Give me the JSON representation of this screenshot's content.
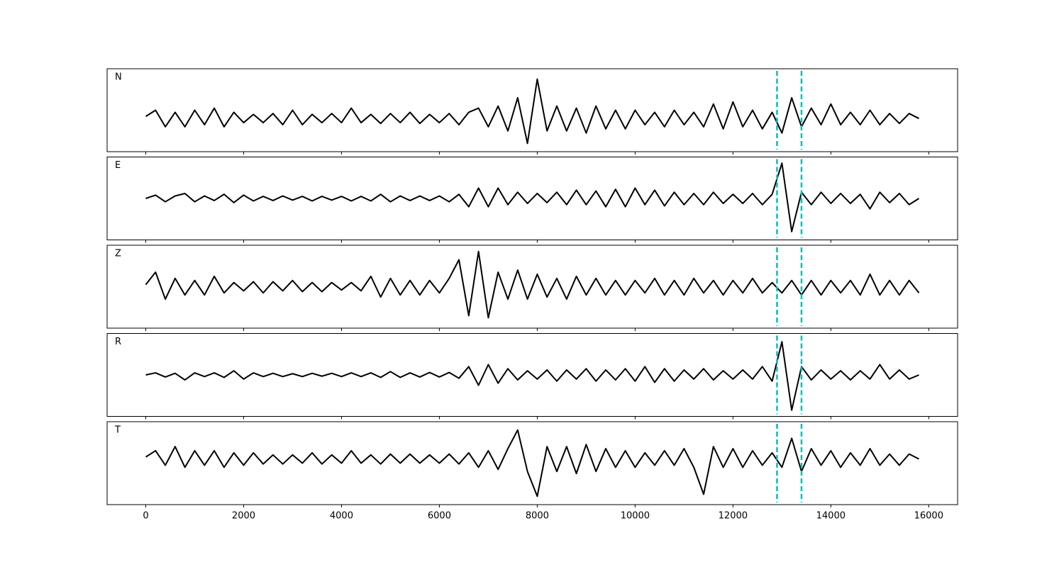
{
  "chart_data": {
    "type": "line",
    "x": [
      0,
      200,
      400,
      600,
      800,
      1000,
      1200,
      1400,
      1600,
      1800,
      2000,
      2200,
      2400,
      2600,
      2800,
      3000,
      3200,
      3400,
      3600,
      3800,
      4000,
      4200,
      4400,
      4600,
      4800,
      5000,
      5200,
      5400,
      5600,
      5800,
      6000,
      6200,
      6400,
      6600,
      6800,
      7000,
      7200,
      7400,
      7600,
      7800,
      8000,
      8200,
      8400,
      8600,
      8800,
      9000,
      9200,
      9400,
      9600,
      9800,
      10000,
      10200,
      10400,
      10600,
      10800,
      11000,
      11200,
      11400,
      11600,
      11800,
      12000,
      12200,
      12400,
      12600,
      12800,
      13000,
      13200,
      13400,
      13600,
      13800,
      14000,
      14200,
      14400,
      14600,
      14800,
      15000,
      15200,
      15400,
      15600,
      15800
    ],
    "xlim": [
      -790,
      16590
    ],
    "xticks": [
      0,
      2000,
      4000,
      6000,
      8000,
      10000,
      12000,
      14000,
      16000
    ],
    "markers": {
      "values": [
        12900,
        13400
      ],
      "color": "#00bfbf"
    },
    "panels": [
      {
        "label": "N",
        "color": "#000000",
        "ylim": [
          -0.8,
          1.2
        ],
        "values": [
          0.05,
          0.2,
          -0.2,
          0.15,
          -0.2,
          0.2,
          -0.15,
          0.25,
          -0.2,
          0.15,
          -0.1,
          0.1,
          -0.1,
          0.12,
          -0.15,
          0.2,
          -0.15,
          0.1,
          -0.1,
          0.12,
          -0.1,
          0.25,
          -0.1,
          0.1,
          -0.12,
          0.12,
          -0.1,
          0.15,
          -0.12,
          0.1,
          -0.1,
          0.12,
          -0.15,
          0.15,
          0.25,
          -0.2,
          0.3,
          -0.3,
          0.5,
          -0.6,
          0.95,
          -0.3,
          0.3,
          -0.3,
          0.25,
          -0.35,
          0.3,
          -0.25,
          0.2,
          -0.25,
          0.2,
          -0.15,
          0.15,
          -0.2,
          0.2,
          -0.15,
          0.15,
          -0.2,
          0.35,
          -0.25,
          0.4,
          -0.2,
          0.2,
          -0.25,
          0.15,
          -0.35,
          0.5,
          -0.2,
          0.25,
          -0.15,
          0.35,
          -0.15,
          0.15,
          -0.15,
          0.2,
          -0.15,
          0.12,
          -0.12,
          0.12,
          0.0
        ]
      },
      {
        "label": "E",
        "color": "#000000",
        "ylim": [
          -1,
          1
        ],
        "values": [
          0.0,
          0.08,
          -0.08,
          0.06,
          0.12,
          -0.08,
          0.06,
          -0.05,
          0.1,
          -0.1,
          0.08,
          -0.06,
          0.05,
          -0.05,
          0.06,
          -0.04,
          0.05,
          -0.06,
          0.05,
          -0.04,
          0.05,
          -0.06,
          0.05,
          -0.06,
          0.1,
          -0.08,
          0.06,
          -0.05,
          0.06,
          -0.05,
          0.06,
          -0.08,
          0.1,
          -0.2,
          0.25,
          -0.2,
          0.25,
          -0.15,
          0.15,
          -0.12,
          0.12,
          -0.1,
          0.15,
          -0.15,
          0.2,
          -0.15,
          0.18,
          -0.2,
          0.22,
          -0.2,
          0.25,
          -0.15,
          0.2,
          -0.18,
          0.15,
          -0.15,
          0.12,
          -0.15,
          0.15,
          -0.12,
          0.1,
          -0.12,
          0.12,
          -0.15,
          0.1,
          0.85,
          -0.8,
          0.15,
          -0.15,
          0.15,
          -0.12,
          0.12,
          -0.12,
          0.1,
          -0.25,
          0.15,
          -0.1,
          0.12,
          -0.15,
          0.0
        ]
      },
      {
        "label": "Z",
        "color": "#000000",
        "ylim": [
          -1,
          1
        ],
        "values": [
          0.05,
          0.35,
          -0.3,
          0.2,
          -0.2,
          0.15,
          -0.2,
          0.25,
          -0.15,
          0.1,
          -0.1,
          0.12,
          -0.15,
          0.12,
          -0.1,
          0.15,
          -0.12,
          0.1,
          -0.12,
          0.1,
          -0.08,
          0.1,
          -0.1,
          0.25,
          -0.25,
          0.2,
          -0.2,
          0.15,
          -0.2,
          0.15,
          -0.15,
          0.2,
          0.65,
          -0.7,
          0.85,
          -0.75,
          0.35,
          -0.3,
          0.4,
          -0.3,
          0.3,
          -0.25,
          0.2,
          -0.3,
          0.25,
          -0.2,
          0.2,
          -0.2,
          0.15,
          -0.2,
          0.15,
          -0.15,
          0.2,
          -0.2,
          0.15,
          -0.2,
          0.2,
          -0.15,
          0.15,
          -0.2,
          0.15,
          -0.15,
          0.2,
          -0.15,
          0.1,
          -0.15,
          0.15,
          -0.2,
          0.15,
          -0.2,
          0.15,
          -0.15,
          0.15,
          -0.2,
          0.3,
          -0.2,
          0.15,
          -0.2,
          0.15,
          -0.15
        ]
      },
      {
        "label": "R",
        "color": "#000000",
        "ylim": [
          -1,
          1
        ],
        "values": [
          0.0,
          0.05,
          -0.05,
          0.04,
          -0.12,
          0.05,
          -0.04,
          0.05,
          -0.06,
          0.1,
          -0.1,
          0.05,
          -0.04,
          0.04,
          -0.04,
          0.03,
          -0.04,
          0.04,
          -0.03,
          0.04,
          -0.04,
          0.05,
          -0.04,
          0.05,
          -0.06,
          0.08,
          -0.06,
          0.05,
          -0.05,
          0.06,
          -0.05,
          0.06,
          -0.08,
          0.2,
          -0.25,
          0.25,
          -0.2,
          0.15,
          -0.12,
          0.1,
          -0.1,
          0.12,
          -0.15,
          0.12,
          -0.1,
          0.15,
          -0.15,
          0.12,
          -0.12,
          0.15,
          -0.15,
          0.2,
          -0.18,
          0.15,
          -0.15,
          0.12,
          -0.1,
          0.15,
          -0.12,
          0.1,
          -0.1,
          0.12,
          -0.1,
          0.2,
          -0.15,
          0.8,
          -0.85,
          0.2,
          -0.12,
          0.12,
          -0.1,
          0.1,
          -0.12,
          0.1,
          -0.1,
          0.25,
          -0.1,
          0.12,
          -0.1,
          0.0
        ]
      },
      {
        "label": "T",
        "color": "#000000",
        "ylim": [
          -1.1,
          0.9
        ],
        "values": [
          0.05,
          0.2,
          -0.15,
          0.3,
          -0.2,
          0.2,
          -0.15,
          0.2,
          -0.2,
          0.15,
          -0.15,
          0.15,
          -0.12,
          0.1,
          -0.12,
          0.1,
          -0.1,
          0.15,
          -0.12,
          0.1,
          -0.1,
          0.2,
          -0.1,
          0.1,
          -0.12,
          0.12,
          -0.1,
          0.12,
          -0.1,
          0.1,
          -0.1,
          0.12,
          -0.12,
          0.15,
          -0.2,
          0.2,
          -0.25,
          0.25,
          0.7,
          -0.3,
          -0.9,
          0.3,
          -0.3,
          0.3,
          -0.35,
          0.35,
          -0.3,
          0.25,
          -0.2,
          0.2,
          -0.2,
          0.15,
          -0.15,
          0.2,
          -0.15,
          0.25,
          -0.2,
          -0.85,
          0.3,
          -0.2,
          0.25,
          -0.2,
          0.2,
          -0.15,
          0.15,
          -0.2,
          0.5,
          -0.3,
          0.25,
          -0.15,
          0.2,
          -0.2,
          0.15,
          -0.15,
          0.25,
          -0.15,
          0.12,
          -0.15,
          0.12,
          0.0
        ]
      }
    ]
  }
}
